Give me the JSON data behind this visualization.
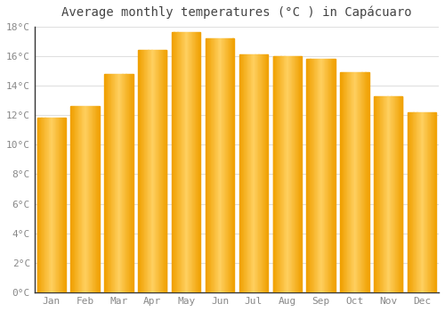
{
  "title": "Average monthly temperatures (°C ) in Capácuaro",
  "months": [
    "Jan",
    "Feb",
    "Mar",
    "Apr",
    "May",
    "Jun",
    "Jul",
    "Aug",
    "Sep",
    "Oct",
    "Nov",
    "Dec"
  ],
  "values": [
    11.8,
    12.6,
    14.8,
    16.4,
    17.6,
    17.2,
    16.1,
    16.0,
    15.8,
    14.9,
    13.3,
    12.2
  ],
  "bar_color_dark": "#F0A000",
  "bar_color_light": "#FFD060",
  "ylim": [
    0,
    18
  ],
  "yticks": [
    0,
    2,
    4,
    6,
    8,
    10,
    12,
    14,
    16,
    18
  ],
  "ytick_labels": [
    "0°C",
    "2°C",
    "4°C",
    "6°C",
    "8°C",
    "10°C",
    "12°C",
    "14°C",
    "16°C",
    "18°C"
  ],
  "bg_color": "#ffffff",
  "grid_color": "#e0e0e0",
  "title_fontsize": 10,
  "tick_fontsize": 8,
  "tick_color": "#888888",
  "bar_gap": 0.15
}
